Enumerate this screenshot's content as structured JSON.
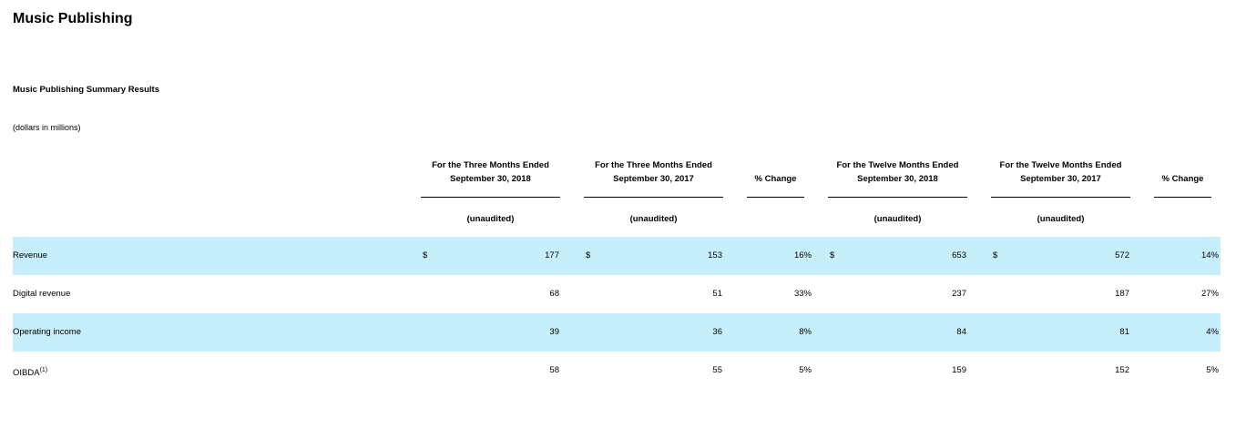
{
  "header": {
    "title": "Music Publishing",
    "subtitle": "Music Publishing Summary Results",
    "note": "(dollars in millions)"
  },
  "table": {
    "columns": [
      {
        "lines": [
          "For the Three Months Ended",
          "September 30, 2018"
        ],
        "sub": "(unaudited)"
      },
      {
        "lines": [
          "For the Three Months Ended",
          "September 30, 2017"
        ],
        "sub": "(unaudited)"
      },
      {
        "lines": [
          "% Change"
        ]
      },
      {
        "lines": [
          "For the Twelve Months Ended",
          "September 30, 2018"
        ],
        "sub": "(unaudited)"
      },
      {
        "lines": [
          "For the Twelve Months Ended",
          "September 30, 2017"
        ],
        "sub": "(unaudited)"
      },
      {
        "lines": [
          "% Change"
        ]
      }
    ],
    "currency": "$",
    "rows": [
      {
        "label": "Revenue",
        "currency": true,
        "values": [
          "177",
          "153",
          "16%",
          "653",
          "572",
          "14%"
        ]
      },
      {
        "label": "Digital revenue",
        "values": [
          "68",
          "51",
          "33%",
          "237",
          "187",
          "27%"
        ]
      },
      {
        "label": "Operating income",
        "values": [
          "39",
          "36",
          "8%",
          "84",
          "81",
          "4%"
        ]
      },
      {
        "label": "OIBDA",
        "footnote": "(1)",
        "values": [
          "58",
          "55",
          "5%",
          "159",
          "152",
          "5%"
        ]
      }
    ]
  }
}
